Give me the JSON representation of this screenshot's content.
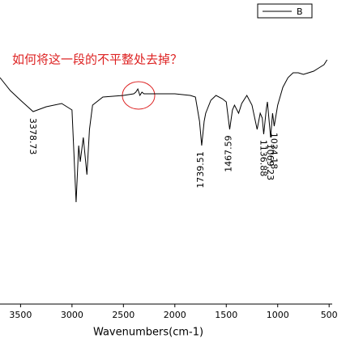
{
  "chart_data": {
    "type": "line",
    "title": "如何将这一段的不平整处去掉？",
    "xlabel": "Wavenumbers(cm-1)",
    "xlim": [
      3700,
      470
    ],
    "xticks": [
      3500,
      3000,
      2500,
      2000,
      1500,
      1000,
      500
    ],
    "ylim": [
      0,
      100
    ],
    "legend": "top-right",
    "series": [
      {
        "name": "B",
        "color": "#000000",
        "x": [
          3700,
          3600,
          3500,
          3378,
          3250,
          3100,
          3000,
          2960,
          2935,
          2920,
          2890,
          2855,
          2830,
          2800,
          2700,
          2500,
          2400,
          2380,
          2360,
          2340,
          2320,
          2300,
          2200,
          2000,
          1850,
          1800,
          1760,
          1739,
          1715,
          1700,
          1650,
          1600,
          1540,
          1500,
          1467,
          1440,
          1420,
          1380,
          1350,
          1300,
          1250,
          1200,
          1170,
          1150,
          1136,
          1110,
          1100,
          1069,
          1050,
          1034,
          1000,
          950,
          900,
          850,
          800,
          750,
          700,
          650,
          600,
          550,
          520
        ],
        "values": [
          82,
          74,
          68,
          61,
          64,
          66,
          62,
          5,
          40,
          30,
          45,
          22,
          50,
          65,
          70,
          71,
          72,
          73,
          75,
          71,
          73,
          72,
          72,
          72,
          71,
          70,
          55,
          40,
          55,
          60,
          68,
          71,
          69,
          67,
          50,
          62,
          65,
          60,
          66,
          71,
          65,
          50,
          60,
          57,
          47,
          63,
          67,
          45,
          60,
          52,
          65,
          76,
          82,
          85,
          85,
          84,
          85,
          86,
          88,
          90,
          93
        ]
      }
    ],
    "peak_labels": [
      3378.73,
      1739.51,
      1467.59,
      1136.88,
      1069.23,
      1034.18
    ]
  }
}
